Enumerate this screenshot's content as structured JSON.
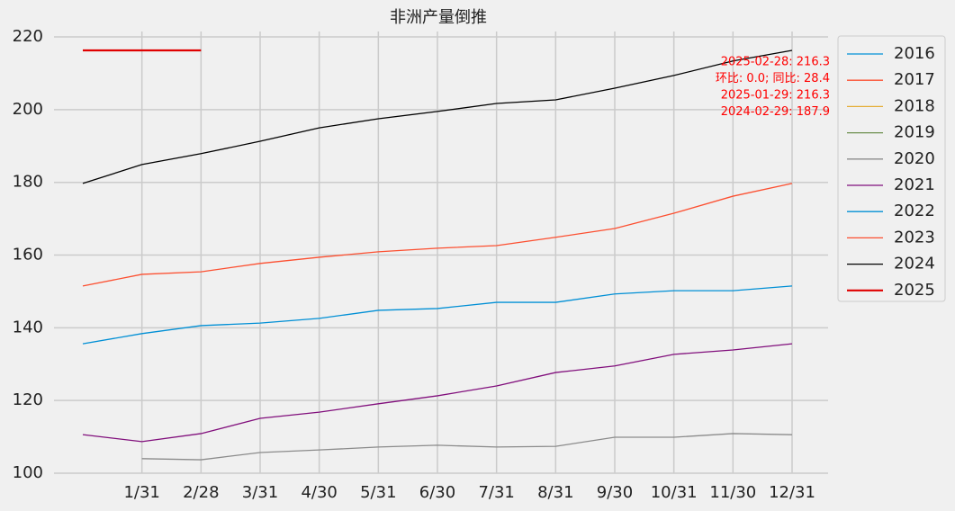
{
  "chart_data": {
    "type": "line",
    "title": "非洲产量倒推",
    "categories": [
      null,
      "1/31",
      "2/28",
      "3/31",
      "4/30",
      "5/31",
      "6/30",
      "7/31",
      "8/31",
      "9/30",
      "10/31",
      "11/30",
      "12/31"
    ],
    "series": [
      {
        "name": "2016",
        "color": "#008fd5",
        "values": [
          null,
          null,
          null,
          null,
          null,
          null,
          null,
          null,
          null,
          null,
          null,
          null,
          null
        ]
      },
      {
        "name": "2017",
        "color": "#fc4f30",
        "values": [
          null,
          null,
          null,
          null,
          null,
          null,
          null,
          null,
          null,
          null,
          null,
          null,
          null
        ]
      },
      {
        "name": "2018",
        "color": "#e5ae38",
        "values": [
          null,
          null,
          null,
          null,
          null,
          null,
          null,
          null,
          null,
          null,
          null,
          null,
          null
        ]
      },
      {
        "name": "2019",
        "color": "#6d904f",
        "values": [
          null,
          null,
          null,
          null,
          null,
          null,
          null,
          null,
          null,
          null,
          null,
          null,
          null
        ]
      },
      {
        "name": "2020",
        "color": "#8b8b8b",
        "values": [
          null,
          104.0,
          103.7,
          105.7,
          106.4,
          107.2,
          107.7,
          107.2,
          107.4,
          109.9,
          109.9,
          110.9,
          110.6
        ]
      },
      {
        "name": "2021",
        "color": "#810f7c",
        "values": [
          110.6,
          108.7,
          110.9,
          115.1,
          116.8,
          119.1,
          121.3,
          124.0,
          127.7,
          129.5,
          132.7,
          133.9,
          135.6
        ]
      },
      {
        "name": "2022",
        "color": "#008fd5",
        "values": [
          135.6,
          138.4,
          140.6,
          141.3,
          142.6,
          144.8,
          145.3,
          147.0,
          147.0,
          149.3,
          150.2,
          150.2,
          151.5
        ]
      },
      {
        "name": "2023",
        "color": "#fc4f30",
        "values": [
          151.5,
          154.7,
          155.4,
          157.7,
          159.4,
          160.9,
          161.9,
          162.6,
          164.9,
          167.3,
          171.5,
          176.2,
          179.7
        ]
      },
      {
        "name": "2024",
        "color": "#000000",
        "values": [
          179.7,
          184.9,
          187.9,
          191.3,
          195.0,
          197.5,
          199.5,
          201.7,
          202.7,
          205.9,
          209.4,
          213.4,
          216.3
        ]
      },
      {
        "name": "2025",
        "color": "#e00000",
        "values": [
          216.3,
          216.3,
          216.3,
          null,
          null,
          null,
          null,
          null,
          null,
          null,
          null,
          null,
          null
        ]
      }
    ],
    "annotations": [
      "2025-02-28: 216.3",
      "环比: 0.0; 同比: 28.4",
      "2025-01-29: 216.3",
      "2024-02-29: 187.9"
    ],
    "ylim": [
      100,
      221.5
    ],
    "yticks": [
      100,
      120,
      140,
      160,
      180,
      200,
      220
    ],
    "grid": true,
    "legend": "outside right"
  }
}
